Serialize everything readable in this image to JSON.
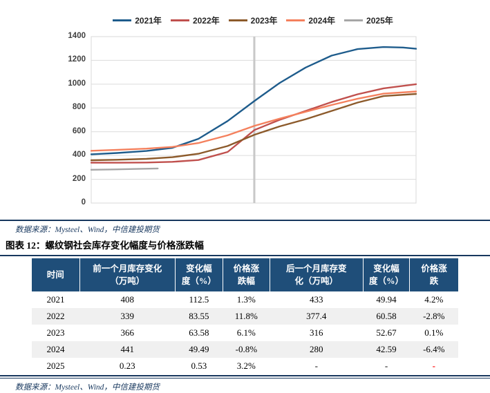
{
  "chart_data": {
    "type": "line",
    "title": "",
    "xlabel": "",
    "ylabel": "",
    "ylim": [
      0,
      1400
    ],
    "yticks": [
      0,
      200,
      400,
      600,
      800,
      1000,
      1200,
      1400
    ],
    "x_tick_labels_visible": false,
    "grid": "horizontal",
    "legend_position": "top",
    "vertical_marker_fraction": 0.502,
    "colors": {
      "grid": "#DCDCDC",
      "marker_line": "#C8C8C8",
      "plot_border": "#D9D9D9",
      "axis_label": "#404040"
    },
    "series": [
      {
        "name": "2021年",
        "color": "#1E5C8C",
        "x_fraction": [
          0,
          0.08,
          0.17,
          0.25,
          0.33,
          0.42,
          0.503,
          0.58,
          0.66,
          0.74,
          0.82,
          0.9,
          0.96,
          1.0
        ],
        "values": [
          410,
          421,
          438,
          465,
          540,
          690,
          860,
          1010,
          1140,
          1240,
          1295,
          1312,
          1308,
          1298
        ]
      },
      {
        "name": "2022年",
        "color": "#C0504D",
        "x_fraction": [
          0,
          0.08,
          0.17,
          0.25,
          0.33,
          0.42,
          0.503,
          0.58,
          0.66,
          0.74,
          0.82,
          0.9,
          1.0
        ],
        "values": [
          340,
          339,
          341,
          347,
          362,
          430,
          615,
          700,
          775,
          850,
          915,
          965,
          1000
        ]
      },
      {
        "name": "2023年",
        "color": "#8C5A2B",
        "x_fraction": [
          0,
          0.08,
          0.17,
          0.25,
          0.33,
          0.42,
          0.503,
          0.58,
          0.66,
          0.74,
          0.82,
          0.9,
          1.0
        ],
        "values": [
          360,
          364,
          372,
          386,
          415,
          480,
          575,
          645,
          705,
          775,
          845,
          900,
          918
        ]
      },
      {
        "name": "2024年",
        "color": "#F4805D",
        "x_fraction": [
          0,
          0.08,
          0.17,
          0.25,
          0.33,
          0.42,
          0.503,
          0.58,
          0.66,
          0.74,
          0.82,
          0.9,
          1.0
        ],
        "values": [
          440,
          448,
          458,
          472,
          505,
          570,
          650,
          710,
          768,
          825,
          878,
          920,
          938
        ]
      },
      {
        "name": "2025年",
        "color": "#A6A6A6",
        "x_fraction": [
          0,
          0.07,
          0.14,
          0.205
        ],
        "values": [
          280,
          283,
          287,
          291
        ]
      }
    ]
  },
  "source_top": "数据来源：Mysteel、Wind，中信建投期货",
  "figure_title": "图表 12：螺纹钢社会库存变化幅度与价格涨跌幅",
  "table": {
    "columns": [
      "时间",
      "前一个月库存变化\n（万吨）",
      "变化幅\n度（%）",
      "价格涨\n跌幅",
      "后一个月库存变\n化（万吨）",
      "变化幅\n度（%）",
      "价格涨\n跌"
    ],
    "rows": [
      [
        "2021",
        "408",
        "112.5",
        "1.3%",
        "433",
        "49.94",
        "4.2%"
      ],
      [
        "2022",
        "339",
        "83.55",
        "11.8%",
        "377.4",
        "60.58",
        "-2.8%"
      ],
      [
        "2023",
        "366",
        "63.58",
        "6.1%",
        "316",
        "52.67",
        "0.1%"
      ],
      [
        "2024",
        "441",
        "49.49",
        "-0.8%",
        "280",
        "42.59",
        "-6.4%"
      ],
      [
        "2025",
        "0.23",
        "0.53",
        "3.2%",
        "-",
        "-",
        {
          "text": "-",
          "color": "#FF0000"
        }
      ]
    ]
  },
  "source_bottom": "数据来源：Mysteel、Wind，中信建投期货"
}
